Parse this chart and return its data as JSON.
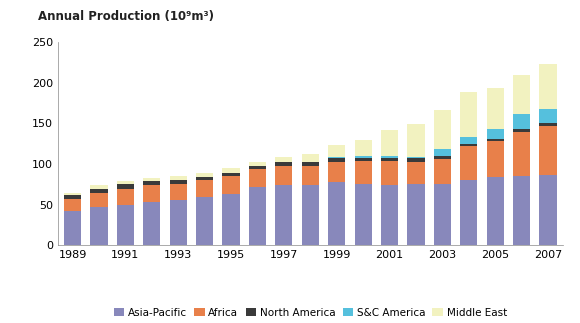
{
  "years": [
    1989,
    1990,
    1991,
    1992,
    1993,
    1994,
    1995,
    1996,
    1997,
    1998,
    1999,
    2000,
    2001,
    2002,
    2003,
    2004,
    2005,
    2006,
    2007
  ],
  "asia_pacific": [
    42,
    47,
    50,
    54,
    56,
    60,
    63,
    72,
    74,
    74,
    78,
    75,
    74,
    75,
    76,
    80,
    84,
    85,
    87
  ],
  "africa": [
    15,
    17,
    20,
    20,
    20,
    20,
    22,
    22,
    24,
    24,
    25,
    29,
    30,
    28,
    30,
    42,
    44,
    55,
    60
  ],
  "north_america": [
    5,
    5,
    5,
    5,
    4,
    4,
    4,
    4,
    4,
    4,
    4,
    4,
    4,
    4,
    4,
    3,
    3,
    3,
    3
  ],
  "sc_america": [
    0,
    0,
    0,
    0,
    0,
    0,
    0,
    0,
    1,
    1,
    2,
    2,
    2,
    2,
    8,
    8,
    12,
    18,
    18
  ],
  "middle_east": [
    3,
    5,
    4,
    4,
    5,
    5,
    6,
    5,
    6,
    9,
    15,
    20,
    32,
    40,
    48,
    55,
    50,
    48,
    55
  ],
  "colors": {
    "asia_pacific": "#8888bb",
    "africa": "#e8804a",
    "north_america": "#3a3a3a",
    "sc_america": "#55c0dd",
    "middle_east": "#f2f2c0"
  },
  "ylabel": "Annual Production (10⁹m³)",
  "ylim": [
    0,
    250
  ],
  "yticks": [
    0,
    50,
    100,
    150,
    200,
    250
  ],
  "background_color": "#ffffff",
  "bar_width": 0.65,
  "legend_labels": [
    "Asia-Pacific",
    "Africa",
    "North America",
    "S&C America",
    "Middle East"
  ]
}
